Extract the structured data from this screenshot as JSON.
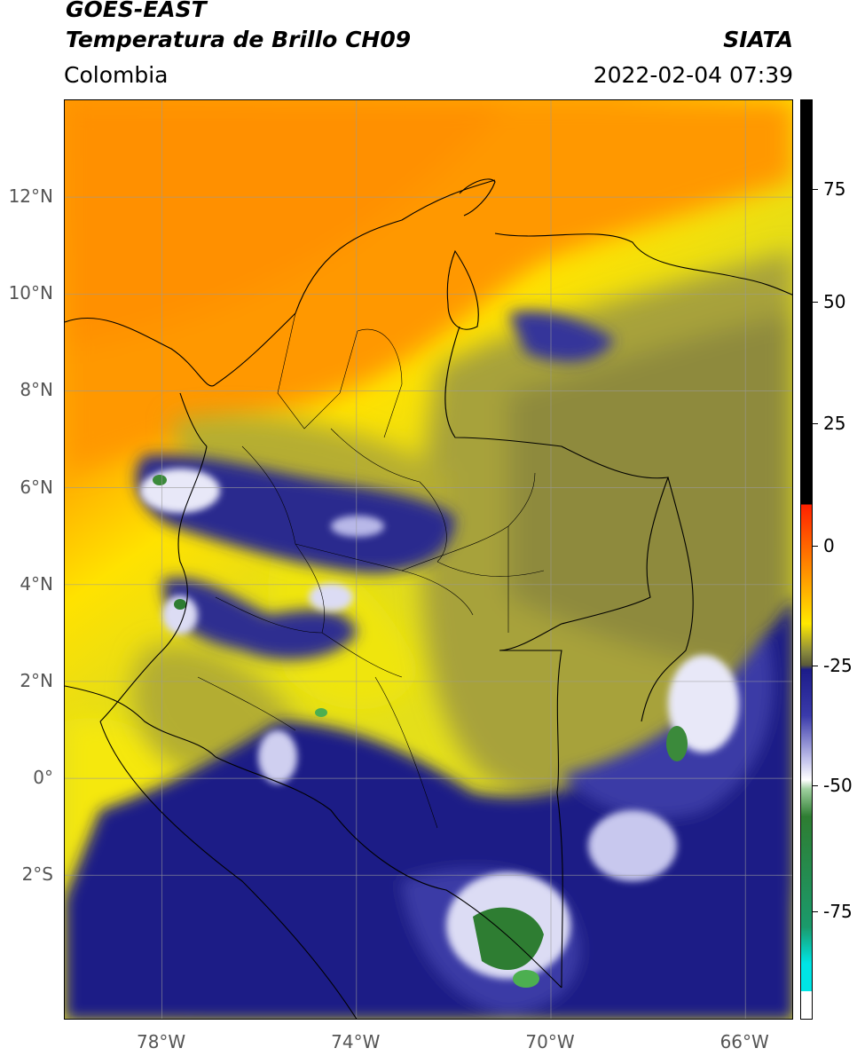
{
  "header": {
    "title_line1": "GOES-EAST",
    "title_line2": "Temperatura de Brillo CH09",
    "region": "Colombia",
    "org": "SIATA",
    "datetime": "2022-02-04 07:39"
  },
  "map": {
    "lat_labels": [
      "12°N",
      "10°N",
      "8°N",
      "6°N",
      "4°N",
      "2°N",
      "0°",
      "2°S"
    ],
    "lon_labels": [
      "78°W",
      "74°W",
      "70°W",
      "66°W"
    ],
    "lat_range": [
      -5.0,
      14.0
    ],
    "lon_range": [
      -80.0,
      -65.0
    ],
    "gridlines": true
  },
  "colorbar": {
    "labels": [
      "75",
      "50",
      "25",
      "0",
      "-25",
      "-50",
      "-75"
    ],
    "colors": {
      "warm_black": "#000000",
      "red": "#ff2000",
      "orange": "#ff9a00",
      "yellow": "#ffe800",
      "olive": "#8c8c3c",
      "navy": "#1c1c8a",
      "white": "#ffffff",
      "green": "#2e7d32",
      "cyan": "#00e5e5"
    }
  }
}
